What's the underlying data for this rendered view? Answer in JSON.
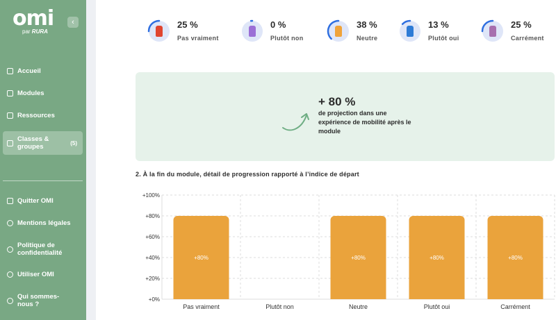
{
  "app": {
    "logo_text": "omi",
    "logo_sub_prefix": "par",
    "logo_sub_brand": "RURA",
    "collapse_glyph": "‹"
  },
  "sidebar": {
    "items": [
      {
        "label": "Accueil",
        "icon": "grid-icon"
      },
      {
        "label": "Modules",
        "icon": "layers-icon"
      },
      {
        "label": "Ressources",
        "icon": "book-icon"
      },
      {
        "label": "Classes & groupes",
        "icon": "grid-icon",
        "count": "(5)",
        "active": true
      }
    ],
    "footer_items": [
      {
        "label": "Quitter OMI",
        "icon": "exit-icon"
      },
      {
        "label": "Mentions légales",
        "icon": "info-icon"
      },
      {
        "label": "Politique de confidentialité",
        "icon": "info-icon"
      },
      {
        "label": "Utiliser OMI",
        "icon": "help-icon"
      },
      {
        "label": "Qui sommes-nous ?",
        "icon": "info-icon"
      }
    ]
  },
  "stats": [
    {
      "pct": "25 %",
      "label": "Pas vraiment",
      "value": 25,
      "icon": "character-red-icon",
      "fig_color": "#e0452f"
    },
    {
      "pct": "0 %",
      "label": "Plutôt non",
      "value": 0,
      "icon": "character-purple-icon",
      "fig_color": "#9b6fd6"
    },
    {
      "pct": "38 %",
      "label": "Neutre",
      "value": 38,
      "icon": "character-orange-icon",
      "fig_color": "#f0a33a"
    },
    {
      "pct": "13 %",
      "label": "Plutôt oui",
      "value": 13,
      "icon": "character-blue-icon",
      "fig_color": "#2e7bd6"
    },
    {
      "pct": "25 %",
      "label": "Carrément",
      "value": 25,
      "icon": "character-mauve-icon",
      "fig_color": "#a76fae"
    }
  ],
  "highlight": {
    "pct": "+ 80 %",
    "text": "de projection dans une expérience de mobilité après le module"
  },
  "section_title": "2. À la fin du module, détail de progression rapporté à l’indice de départ",
  "colors": {
    "sidebar": "#79a884",
    "bar": "#eaa33c",
    "ring": "#2f6fe0",
    "card": "#e6f2ea"
  },
  "chart_data": {
    "type": "bar",
    "categories": [
      "Pas vraiment",
      "Plutôt non",
      "Neutre",
      "Plutôt oui",
      "Carrément"
    ],
    "values": [
      80,
      0,
      80,
      80,
      80
    ],
    "data_labels": [
      "+80%",
      "",
      "+80%",
      "+80%",
      "+80%"
    ],
    "yticks": [
      "+0%",
      "+20%",
      "+40%",
      "+60%",
      "+80%",
      "+100%"
    ],
    "ylim": [
      0,
      100
    ],
    "grid": true,
    "title": "",
    "xlabel": "",
    "ylabel": ""
  }
}
